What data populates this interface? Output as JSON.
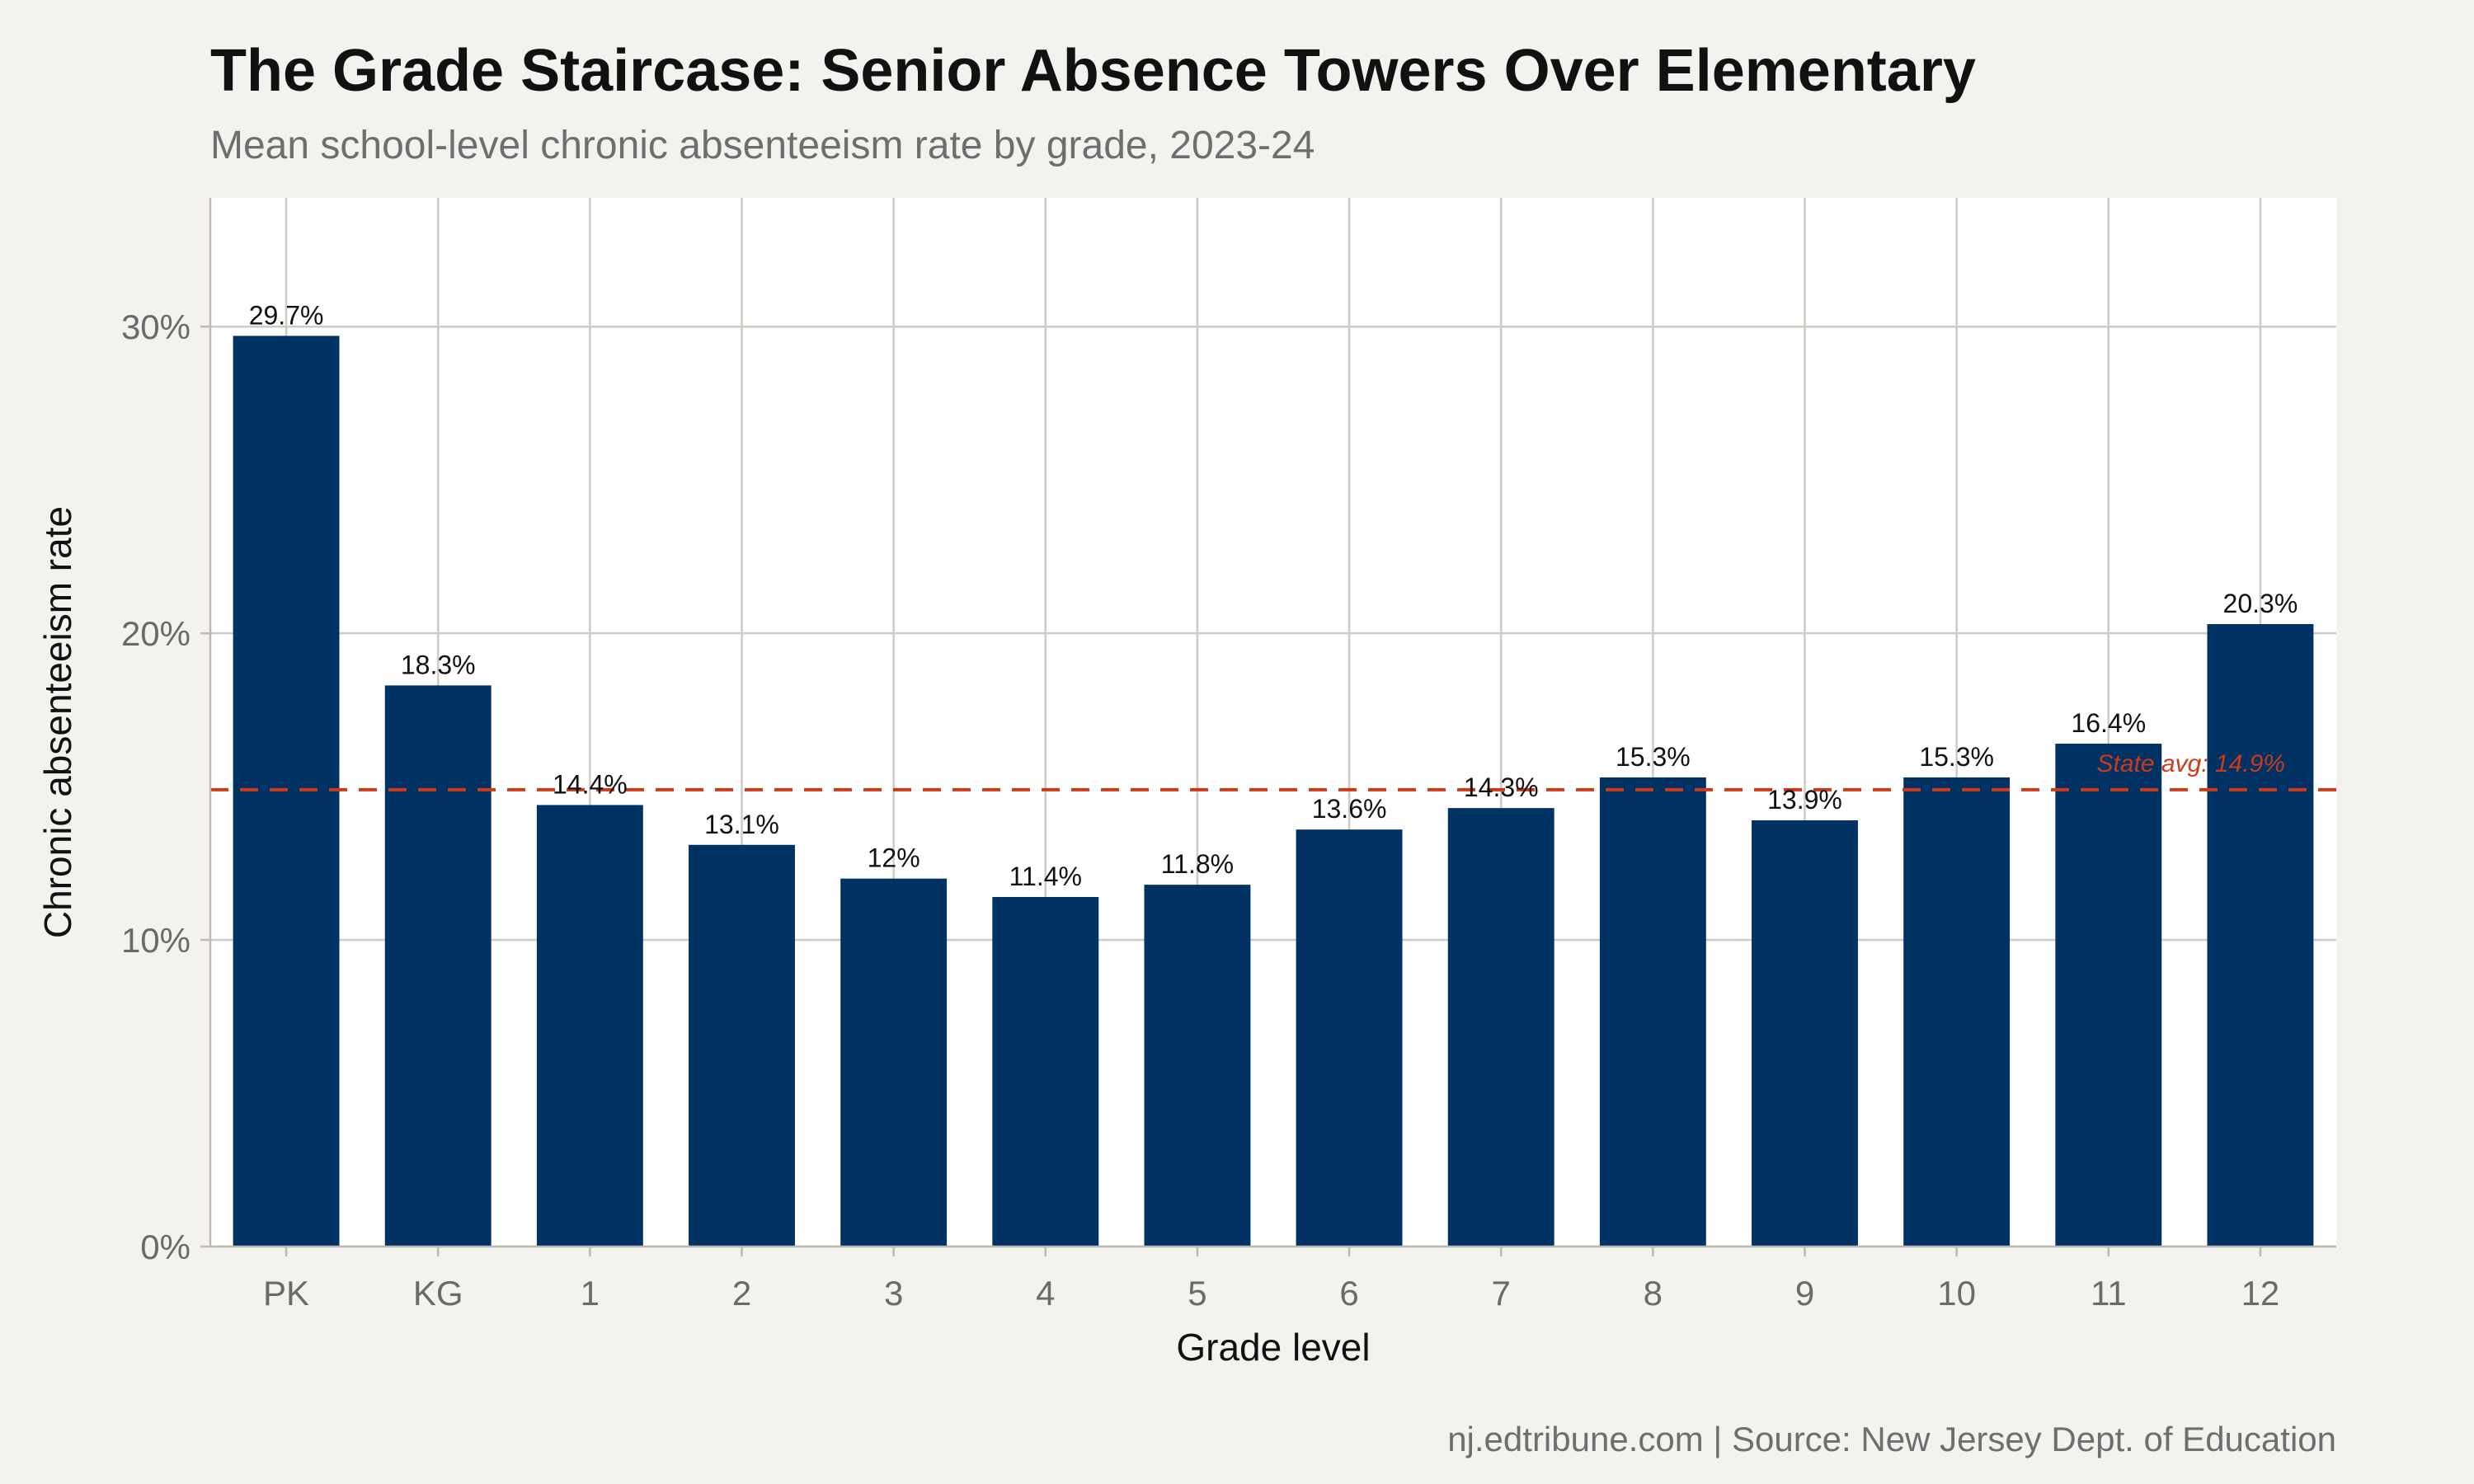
{
  "chart_data": {
    "type": "bar",
    "title": "The Grade Staircase: Senior Absence Towers Over Elementary",
    "subtitle": "Mean school-level chronic absenteeism rate by grade, 2023-24",
    "xlabel": "Grade level",
    "ylabel": "Chronic absenteeism rate",
    "caption": "nj.edtribune.com | Source: New Jersey Dept. of Education",
    "categories": [
      "PK",
      "KG",
      "1",
      "2",
      "3",
      "4",
      "5",
      "6",
      "7",
      "8",
      "9",
      "10",
      "11",
      "12"
    ],
    "values": [
      29.7,
      18.3,
      14.4,
      13.1,
      12.0,
      11.4,
      11.8,
      13.6,
      14.3,
      15.3,
      13.9,
      15.3,
      16.4,
      20.3
    ],
    "value_labels": [
      "29.7%",
      "18.3%",
      "14.4%",
      "13.1%",
      "12%",
      "11.4%",
      "11.8%",
      "13.6%",
      "14.3%",
      "15.3%",
      "13.9%",
      "15.3%",
      "16.4%",
      "20.3%"
    ],
    "ylim": [
      0,
      34.2
    ],
    "y_ticks": [
      0,
      10,
      20,
      30
    ],
    "y_tick_labels": [
      "0%",
      "10%",
      "20%",
      "30%"
    ],
    "grid": true,
    "bar_color": "#003263",
    "reference_line": {
      "value": 14.9,
      "label": "State avg: 14.9%",
      "color": "#cc3a1a",
      "style": "dashed"
    }
  }
}
